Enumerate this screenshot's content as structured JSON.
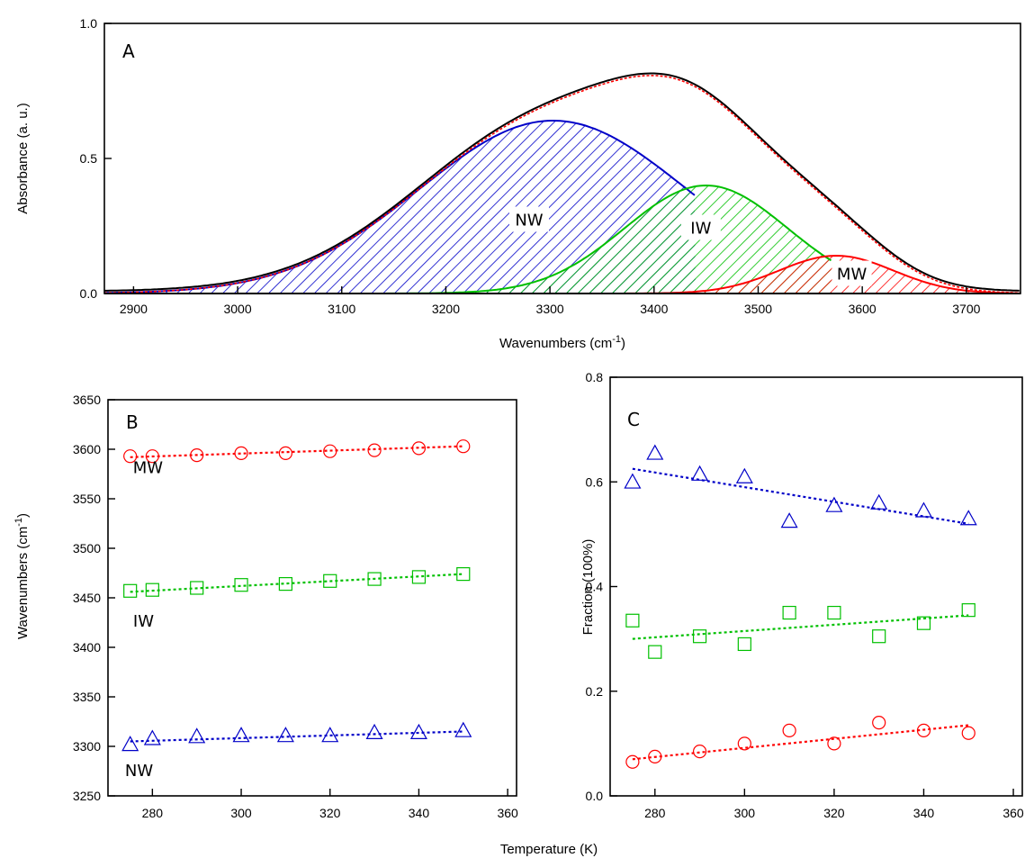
{
  "chart_data": [
    {
      "type": "line",
      "panel_label": "A",
      "xlabel_prefix": "Wavenumbers (cm",
      "xlabel_sup": "-1",
      "xlabel_suffix": ")",
      "ylabel": "Absorbance (a. u.)",
      "xlim": [
        2872,
        3752
      ],
      "ylim": [
        0,
        1.0
      ],
      "xticks": [
        2900,
        3000,
        3100,
        3200,
        3300,
        3400,
        3500,
        3600,
        3700
      ],
      "yticks": [
        {
          "value": 0,
          "label": "0.0"
        },
        {
          "value": 0.5,
          "label": "0.5"
        },
        {
          "value": 1.0,
          "label": "1.0"
        }
      ],
      "components": [
        {
          "name": "NW",
          "center": 3303,
          "amplitude": 0.64,
          "sigma": 128,
          "x_start": 2872,
          "x_end": 3440,
          "color": "#0000c8",
          "fill": "hatch"
        },
        {
          "name": "IW",
          "center": 3450,
          "amplitude": 0.4,
          "sigma": 78,
          "x_start": 3120,
          "x_end": 3570,
          "color": "#00c000",
          "fill": "hatch"
        },
        {
          "name": "MW",
          "center": 3575,
          "amplitude": 0.14,
          "sigma": 55,
          "x_start": 3335,
          "x_end": 3752,
          "color": "#ff0000",
          "fill": "hatch"
        }
      ],
      "peak_labels": [
        {
          "text": "NW",
          "x": 3280,
          "y": 0.275
        },
        {
          "text": "IW",
          "x": 3445,
          "y": 0.245
        },
        {
          "text": "MW",
          "x": 3590,
          "y": 0.075
        }
      ],
      "series": [
        {
          "name": "",
          "kind": "measured",
          "color": "#000000"
        },
        {
          "name": "",
          "kind": "fit_sum",
          "color": "#ff0000",
          "dashed": true
        }
      ]
    },
    {
      "type": "scatter",
      "panel_label": "B",
      "ylabel_prefix": "Wavenumbers (cm",
      "ylabel_sup": "-1",
      "ylabel_suffix": ")",
      "xlim": [
        270,
        362
      ],
      "ylim": [
        3250,
        3650
      ],
      "xticks": [
        280,
        300,
        320,
        340,
        360
      ],
      "yticks": [
        3250,
        3300,
        3350,
        3400,
        3450,
        3500,
        3550,
        3600,
        3650
      ],
      "series": [
        {
          "name": "MW",
          "marker": "circle",
          "color": "#ff0000",
          "x": [
            275,
            280,
            290,
            300,
            310,
            320,
            330,
            340,
            350
          ],
          "y": [
            3593,
            3593,
            3594,
            3596,
            3596,
            3598,
            3599,
            3601,
            3603
          ],
          "fit": [
            [
              275,
              3592
            ],
            [
              350,
              3603
            ]
          ]
        },
        {
          "name": "IW",
          "marker": "square",
          "color": "#00c000",
          "x": [
            275,
            280,
            290,
            300,
            310,
            320,
            330,
            340,
            350
          ],
          "y": [
            3457,
            3458,
            3460,
            3463,
            3464,
            3467,
            3469,
            3471,
            3474
          ],
          "fit": [
            [
              275,
              3456
            ],
            [
              350,
              3474
            ]
          ]
        },
        {
          "name": "NW",
          "marker": "triangle",
          "color": "#0000c8",
          "x": [
            275,
            280,
            290,
            300,
            310,
            320,
            330,
            340,
            350
          ],
          "y": [
            3302,
            3308,
            3310,
            3311,
            3311,
            3311,
            3314,
            3314,
            3316
          ],
          "fit": [
            [
              275,
              3305
            ],
            [
              350,
              3315
            ]
          ]
        }
      ],
      "series_labels": [
        {
          "text": "MW",
          "x": 279,
          "y": 3576
        },
        {
          "text": "IW",
          "x": 278,
          "y": 3421
        },
        {
          "text": "NW",
          "x": 277,
          "y": 3270
        }
      ]
    },
    {
      "type": "scatter",
      "panel_label": "C",
      "ylabel": "Fraction (100%)",
      "xlim": [
        270,
        362
      ],
      "ylim": [
        0,
        0.8
      ],
      "xticks": [
        280,
        300,
        320,
        340,
        360
      ],
      "yticks": [
        {
          "value": 0,
          "label": "0.0"
        },
        {
          "value": 0.2,
          "label": "0.2"
        },
        {
          "value": 0.4,
          "label": "0.4"
        },
        {
          "value": 0.6,
          "label": "0.6"
        },
        {
          "value": 0.8,
          "label": "0.8"
        }
      ],
      "series": [
        {
          "name": "NW",
          "marker": "triangle",
          "color": "#0000c8",
          "x": [
            275,
            280,
            290,
            300,
            310,
            320,
            330,
            340,
            350
          ],
          "y": [
            0.6,
            0.655,
            0.615,
            0.61,
            0.525,
            0.555,
            0.56,
            0.545,
            0.53
          ],
          "fit": [
            [
              275,
              0.625
            ],
            [
              350,
              0.52
            ]
          ]
        },
        {
          "name": "IW",
          "marker": "square",
          "color": "#00c000",
          "x": [
            275,
            280,
            290,
            300,
            310,
            320,
            330,
            340,
            350
          ],
          "y": [
            0.335,
            0.275,
            0.305,
            0.29,
            0.35,
            0.35,
            0.305,
            0.33,
            0.355
          ],
          "fit": [
            [
              275,
              0.3
            ],
            [
              350,
              0.345
            ]
          ]
        },
        {
          "name": "MW",
          "marker": "circle",
          "color": "#ff0000",
          "x": [
            275,
            280,
            290,
            300,
            310,
            320,
            330,
            340,
            350
          ],
          "y": [
            0.065,
            0.075,
            0.085,
            0.1,
            0.125,
            0.1,
            0.14,
            0.125,
            0.12
          ],
          "fit": [
            [
              275,
              0.07
            ],
            [
              350,
              0.135
            ]
          ]
        }
      ]
    }
  ],
  "shared_xlabel": "Temperature (K)"
}
